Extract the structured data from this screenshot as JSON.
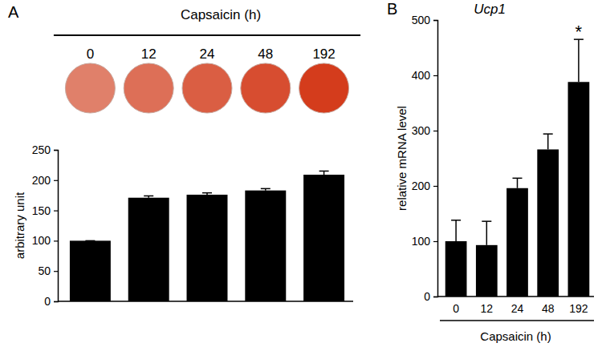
{
  "chart_data": [
    {
      "type": "bar",
      "panel": "A",
      "title": "Capsaicin (h)",
      "y_label": "arbitrary unit",
      "categories": [
        "0",
        "12",
        "24",
        "48",
        "192"
      ],
      "values": [
        100,
        171,
        176,
        183,
        209
      ],
      "errors": [
        0,
        3,
        3,
        3,
        6
      ],
      "color": "#000000",
      "ylim": [
        0,
        250
      ],
      "yticks": [
        0,
        50,
        100,
        150,
        200,
        250
      ],
      "tick_labels": "y"
    },
    {
      "type": "bar",
      "panel": "B",
      "title": "Ucp1",
      "y_label": "relative mRNA level",
      "x_label": "Capsaicin (h)",
      "categories": [
        "0",
        "12",
        "24",
        "48",
        "192"
      ],
      "values": [
        100,
        93,
        196,
        266,
        388
      ],
      "errors": [
        38,
        43,
        18,
        28,
        77
      ],
      "color": "#000000",
      "ylim": [
        0,
        500
      ],
      "yticks": [
        0,
        100,
        200,
        300,
        400,
        500
      ],
      "annotations": [
        {
          "text": "*",
          "x": "192"
        }
      ]
    }
  ]
}
